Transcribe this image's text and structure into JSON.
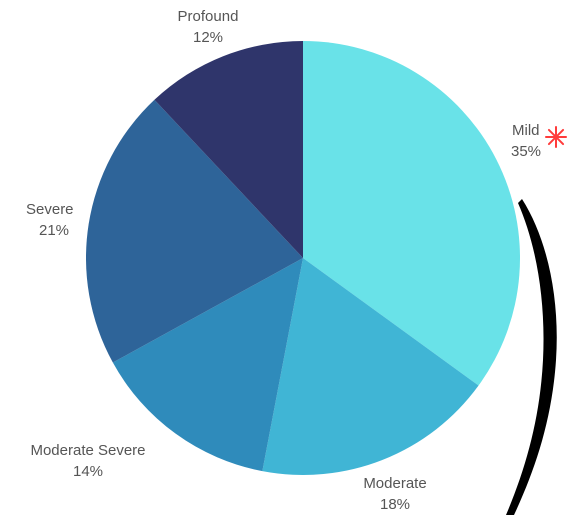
{
  "chart_data": {
    "type": "pie",
    "categories": [
      "Mild",
      "Moderate",
      "Moderate Severe",
      "Severe",
      "Profound"
    ],
    "values": [
      35,
      18,
      14,
      21,
      12
    ],
    "value_labels": [
      "35%",
      "18%",
      "14%",
      "21%",
      "12%"
    ],
    "colors": [
      "#69e2e8",
      "#40b5d5",
      "#2f8bbb",
      "#2e6499",
      "#2f356b"
    ],
    "start_angle_deg": 0,
    "direction": "clockwise"
  },
  "annotation": {
    "marker_color": "#ff3b3b",
    "bracket_color": "#000000"
  }
}
